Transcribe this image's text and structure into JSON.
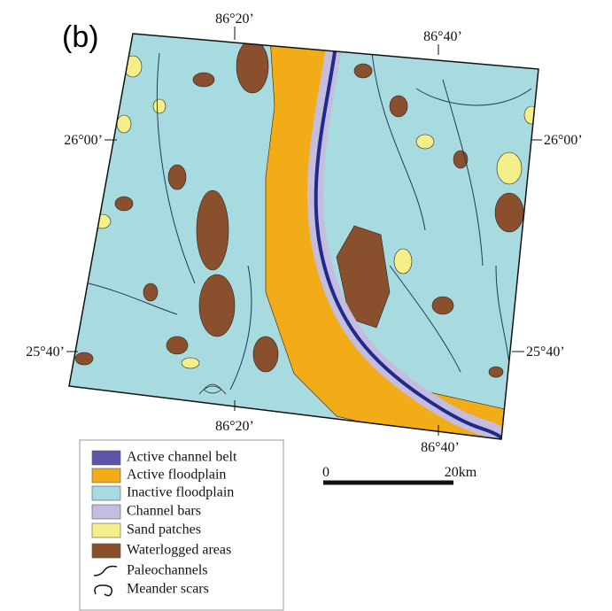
{
  "panel_label": "(b)",
  "graticule": {
    "top": [
      "86°20’",
      "86°40’"
    ],
    "bottom": [
      "86°20’",
      "86°40’"
    ],
    "left": [
      "26°00’",
      "25°40’"
    ],
    "right": [
      "26°00’",
      "25°40’"
    ]
  },
  "legend": [
    {
      "label": "Active channel belt",
      "color": "#5b55a8"
    },
    {
      "label": "Active floodplain",
      "color": "#f2ac17"
    },
    {
      "label": "Inactive floodplain",
      "color": "#a8dbe0"
    },
    {
      "label": "Channel bars",
      "color": "#c4bde0"
    },
    {
      "label": "Sand patches",
      "color": "#f5ef8a"
    },
    {
      "label": "Waterlogged areas",
      "color": "#8a4f2c"
    },
    {
      "label": "Paleochannels"
    },
    {
      "label": "Meander scars"
    }
  ],
  "scale_bar": {
    "start": "0",
    "end": "20km"
  }
}
